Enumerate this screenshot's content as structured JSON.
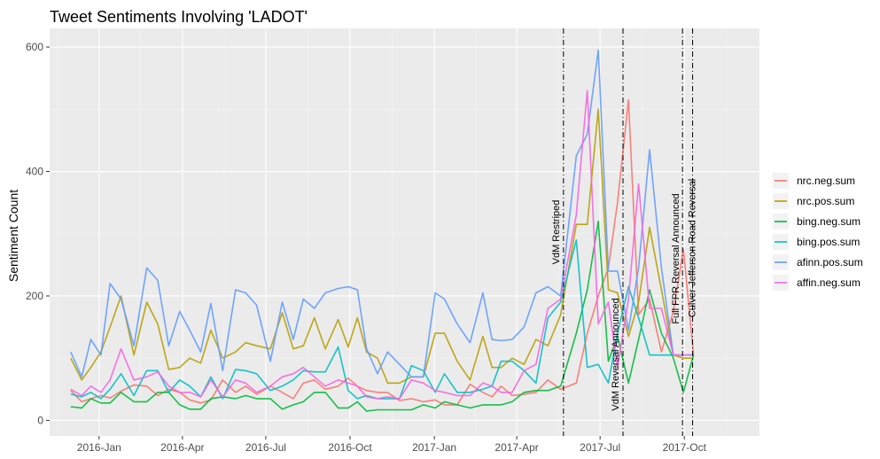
{
  "chart_data": {
    "type": "line",
    "title": "Tweet Sentiments Involving 'LADOT'",
    "xlabel": "",
    "ylabel": "Sentiment Count",
    "xlim": [
      "2015-11-08",
      "2017-12-22"
    ],
    "ylim": [
      -25,
      630
    ],
    "y_ticks": [
      0,
      200,
      400,
      600
    ],
    "x_ticks": [
      {
        "date": "2016-01-01",
        "label": "2016-Jan"
      },
      {
        "date": "2016-04-01",
        "label": "2016-Apr"
      },
      {
        "date": "2016-07-01",
        "label": "2016-Jul"
      },
      {
        "date": "2016-10-01",
        "label": "2016-Oct"
      },
      {
        "date": "2017-01-01",
        "label": "2017-Jan"
      },
      {
        "date": "2017-04-01",
        "label": "2017-Apr"
      },
      {
        "date": "2017-07-01",
        "label": "2017-Jul"
      },
      {
        "date": "2017-10-01",
        "label": "2017-Oct"
      }
    ],
    "grid": true,
    "legend_position": "right",
    "x": [
      "2015-12-01",
      "2015-12-13",
      "2015-12-23",
      "2016-01-03",
      "2016-01-13",
      "2016-01-25",
      "2016-02-08",
      "2016-02-22",
      "2016-03-05",
      "2016-03-17",
      "2016-03-29",
      "2016-04-09",
      "2016-04-21",
      "2016-05-02",
      "2016-05-15",
      "2016-05-29",
      "2016-06-09",
      "2016-06-21",
      "2016-07-06",
      "2016-07-19",
      "2016-07-31",
      "2016-08-11",
      "2016-08-23",
      "2016-09-04",
      "2016-09-18",
      "2016-09-29",
      "2016-10-09",
      "2016-10-19",
      "2016-10-31",
      "2016-11-11",
      "2016-11-24",
      "2016-12-07",
      "2016-12-20",
      "2017-01-02",
      "2017-01-12",
      "2017-01-26",
      "2017-02-09",
      "2017-02-23",
      "2017-03-05",
      "2017-03-15",
      "2017-03-27",
      "2017-04-09",
      "2017-04-22",
      "2017-05-05",
      "2017-05-19",
      "2017-06-05",
      "2017-06-17",
      "2017-06-29",
      "2017-07-10",
      "2017-07-20",
      "2017-08-01",
      "2017-08-12",
      "2017-08-24",
      "2017-09-06",
      "2017-09-19",
      "2017-09-30",
      "2017-10-11"
    ],
    "series": [
      {
        "name": "nrc.neg.sum",
        "color": "#F8766D",
        "values": [
          48,
          30,
          35,
          40,
          36,
          47,
          57,
          55,
          40,
          50,
          45,
          33,
          28,
          33,
          65,
          45,
          55,
          42,
          55,
          45,
          35,
          60,
          65,
          50,
          55,
          68,
          55,
          48,
          45,
          45,
          32,
          35,
          30,
          33,
          25,
          25,
          58,
          45,
          38,
          55,
          40,
          42,
          45,
          65,
          50,
          60,
          140,
          200,
          245,
          350,
          515,
          170,
          195,
          110,
          175,
          275,
          105
        ]
      },
      {
        "name": "nrc.pos.sum",
        "color": "#B79F00",
        "values": [
          100,
          65,
          85,
          110,
          150,
          200,
          105,
          190,
          155,
          82,
          85,
          100,
          92,
          145,
          100,
          110,
          125,
          120,
          115,
          173,
          115,
          120,
          165,
          115,
          162,
          118,
          165,
          110,
          100,
          60,
          60,
          70,
          70,
          140,
          140,
          95,
          65,
          135,
          85,
          85,
          100,
          90,
          130,
          120,
          170,
          315,
          315,
          500,
          210,
          205,
          135,
          190,
          310,
          210,
          105,
          100,
          100
        ]
      },
      {
        "name": "bing.neg.sum",
        "color": "#00BA38",
        "values": [
          22,
          20,
          35,
          28,
          28,
          45,
          30,
          30,
          45,
          45,
          25,
          18,
          18,
          35,
          38,
          35,
          40,
          35,
          35,
          18,
          25,
          30,
          45,
          45,
          20,
          20,
          30,
          15,
          17,
          17,
          17,
          17,
          25,
          20,
          30,
          25,
          20,
          25,
          25,
          25,
          30,
          45,
          48,
          48,
          55,
          140,
          210,
          320,
          95,
          135,
          60,
          130,
          210,
          140,
          100,
          45,
          105
        ]
      },
      {
        "name": "bing.pos.sum",
        "color": "#00BFC4",
        "values": [
          42,
          38,
          45,
          35,
          50,
          75,
          40,
          80,
          80,
          45,
          65,
          55,
          38,
          70,
          35,
          82,
          80,
          75,
          48,
          55,
          65,
          80,
          78,
          78,
          118,
          48,
          35,
          40,
          35,
          35,
          35,
          88,
          80,
          45,
          75,
          45,
          45,
          50,
          55,
          95,
          95,
          80,
          60,
          165,
          190,
          290,
          85,
          90,
          60,
          140,
          215,
          165,
          105,
          105,
          105,
          105,
          105
        ]
      },
      {
        "name": "afinn.pos.sum",
        "color": "#619CFF",
        "values": [
          110,
          70,
          130,
          105,
          220,
          195,
          120,
          245,
          225,
          120,
          175,
          145,
          110,
          188,
          80,
          210,
          205,
          185,
          95,
          190,
          130,
          195,
          180,
          205,
          212,
          215,
          210,
          115,
          75,
          110,
          90,
          70,
          70,
          205,
          195,
          155,
          125,
          205,
          130,
          128,
          130,
          150,
          205,
          215,
          200,
          425,
          460,
          595,
          240,
          240,
          145,
          245,
          435,
          245,
          105,
          105,
          105
        ]
      },
      {
        "name": "affin.neg.sum",
        "color": "#F564E3",
        "values": [
          50,
          40,
          55,
          45,
          65,
          115,
          65,
          70,
          78,
          55,
          45,
          45,
          38,
          65,
          38,
          65,
          60,
          45,
          55,
          70,
          75,
          85,
          70,
          55,
          65,
          60,
          55,
          38,
          35,
          38,
          35,
          65,
          60,
          48,
          45,
          40,
          40,
          60,
          55,
          45,
          45,
          80,
          90,
          180,
          195,
          330,
          530,
          155,
          190,
          85,
          195,
          380,
          180,
          180,
          105,
          105,
          105
        ]
      }
    ],
    "vlines": [
      {
        "date": "2017-05-22",
        "label": "VdM Restriped"
      },
      {
        "date": "2017-07-26",
        "label": "VdM Reversal Announced"
      },
      {
        "date": "2017-09-29",
        "label": "Full FPR Reversal Announced"
      },
      {
        "date": "2017-10-10",
        "label": "Culver-Jefferson Road Reversal"
      }
    ]
  }
}
